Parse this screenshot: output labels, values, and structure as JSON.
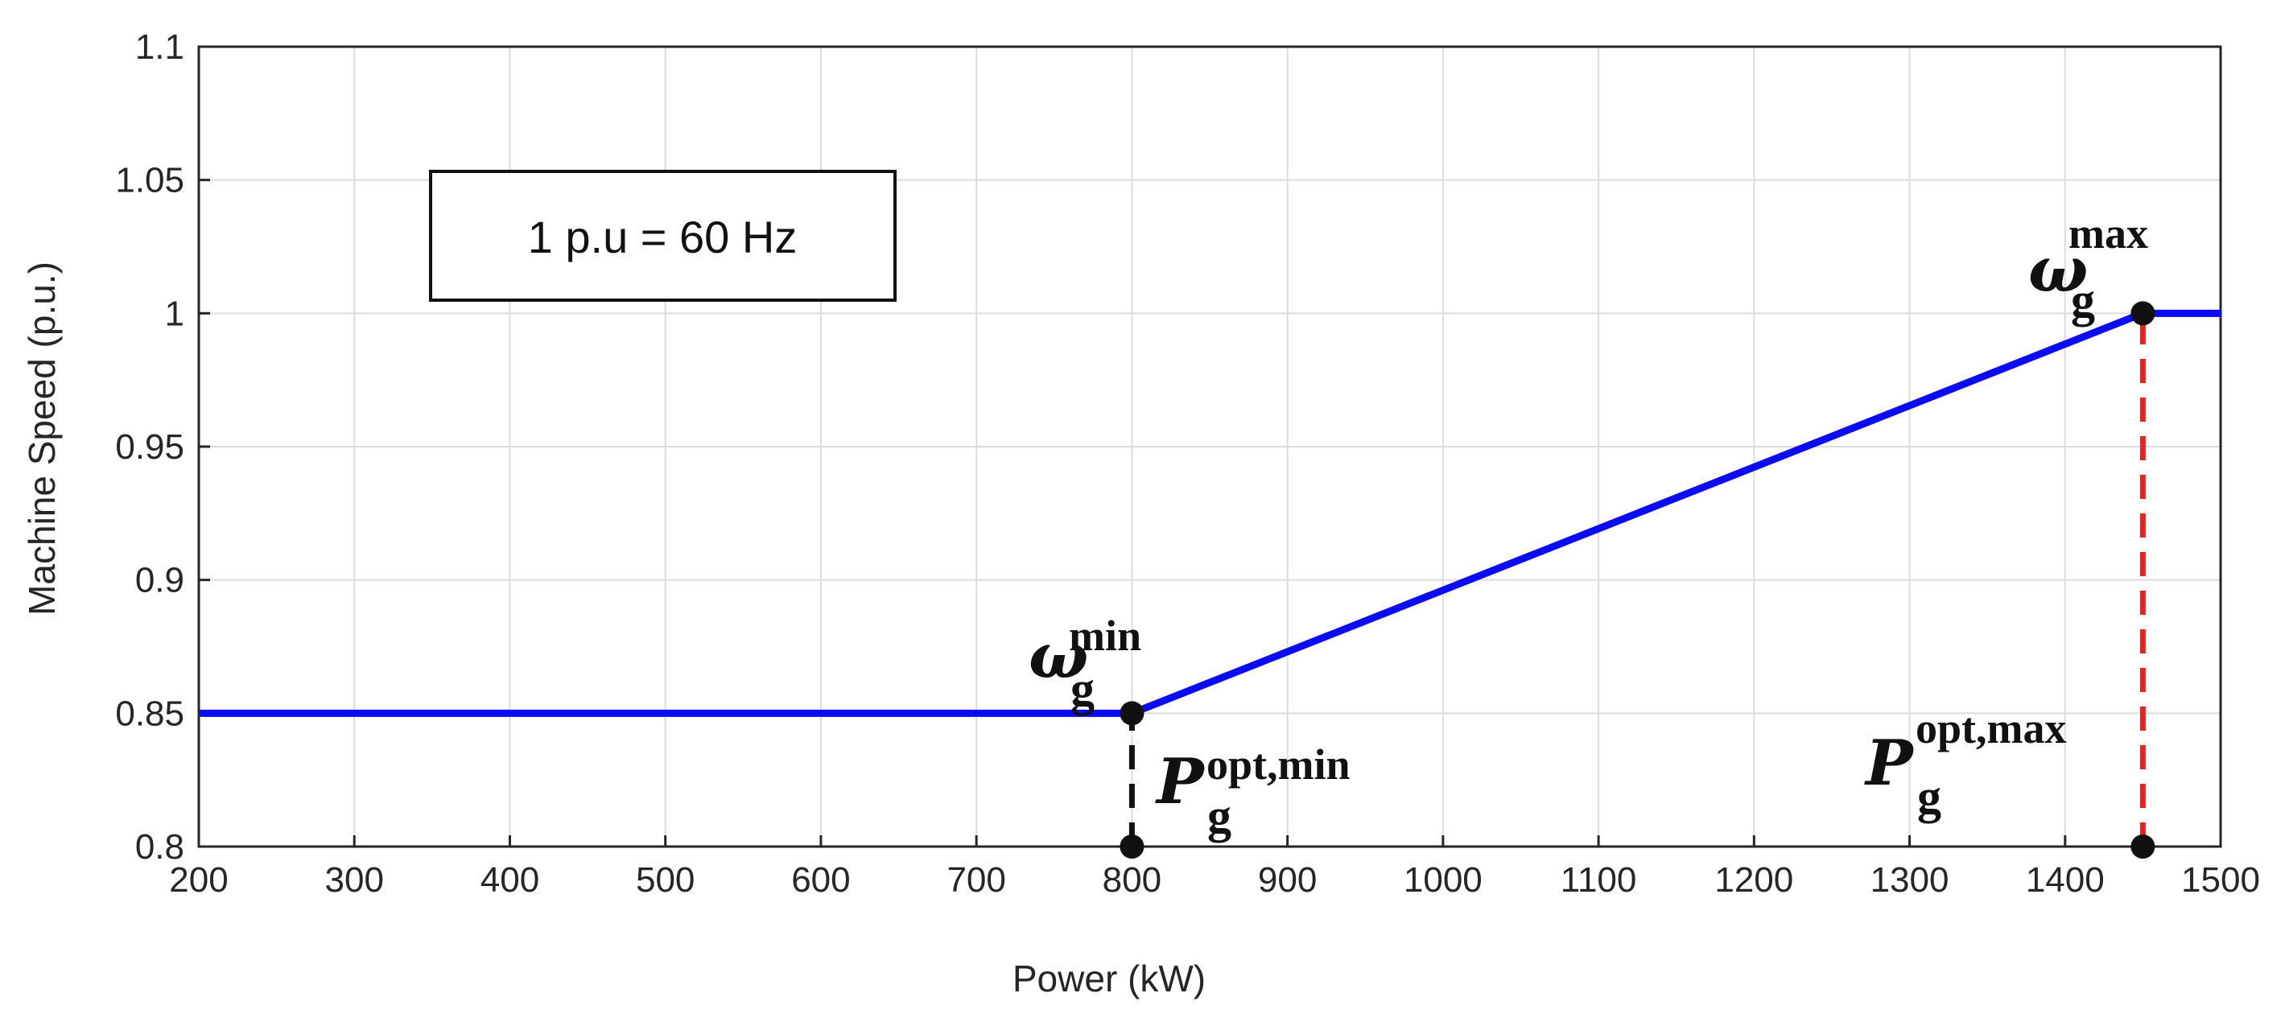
{
  "chart_data": {
    "type": "line",
    "xlabel": "Power (kW)",
    "ylabel": "Machine Speed (p.u.)",
    "xlim": [
      200,
      1500
    ],
    "ylim": [
      0.8,
      1.1
    ],
    "xticks": [
      200,
      300,
      400,
      500,
      600,
      700,
      800,
      900,
      1000,
      1100,
      1200,
      1300,
      1400,
      1500
    ],
    "yticks": [
      0.8,
      0.85,
      0.9,
      0.95,
      1,
      1.05,
      1.1
    ],
    "ytick_labels": [
      "0.8",
      "0.85",
      "0.9",
      "0.95",
      "1",
      "1.05",
      "1.1"
    ],
    "grid": true,
    "series": [
      {
        "color": "#0a0aff",
        "x": [
          200,
          800,
          1450,
          1500
        ],
        "y": [
          0.85,
          0.85,
          1.0,
          1.0
        ]
      }
    ],
    "vlines": [
      {
        "x": 800,
        "y0": 0.8,
        "y1": 0.85,
        "color": "#111111",
        "style": "dashed"
      },
      {
        "x": 1450,
        "y0": 0.8,
        "y1": 1.0,
        "color": "#ff1a1a",
        "style": "dashed"
      }
    ],
    "markers": [
      {
        "x": 800,
        "y": 0.85
      },
      {
        "x": 800,
        "y": 0.8
      },
      {
        "x": 1450,
        "y": 1.0
      },
      {
        "x": 1450,
        "y": 0.8
      }
    ],
    "textbox": {
      "text": "1 p.u = 60 Hz"
    },
    "annotations": [
      {
        "id": "omega-min",
        "main": "ω",
        "sup": "min",
        "sub": "g"
      },
      {
        "id": "p-opt-min",
        "main": "P",
        "sup": "opt,min",
        "sub": "g"
      },
      {
        "id": "omega-max",
        "main": "ω",
        "sup": "max",
        "sub": "g"
      },
      {
        "id": "p-opt-max",
        "main": "P",
        "sup": "opt,max",
        "sub": "g"
      }
    ]
  }
}
